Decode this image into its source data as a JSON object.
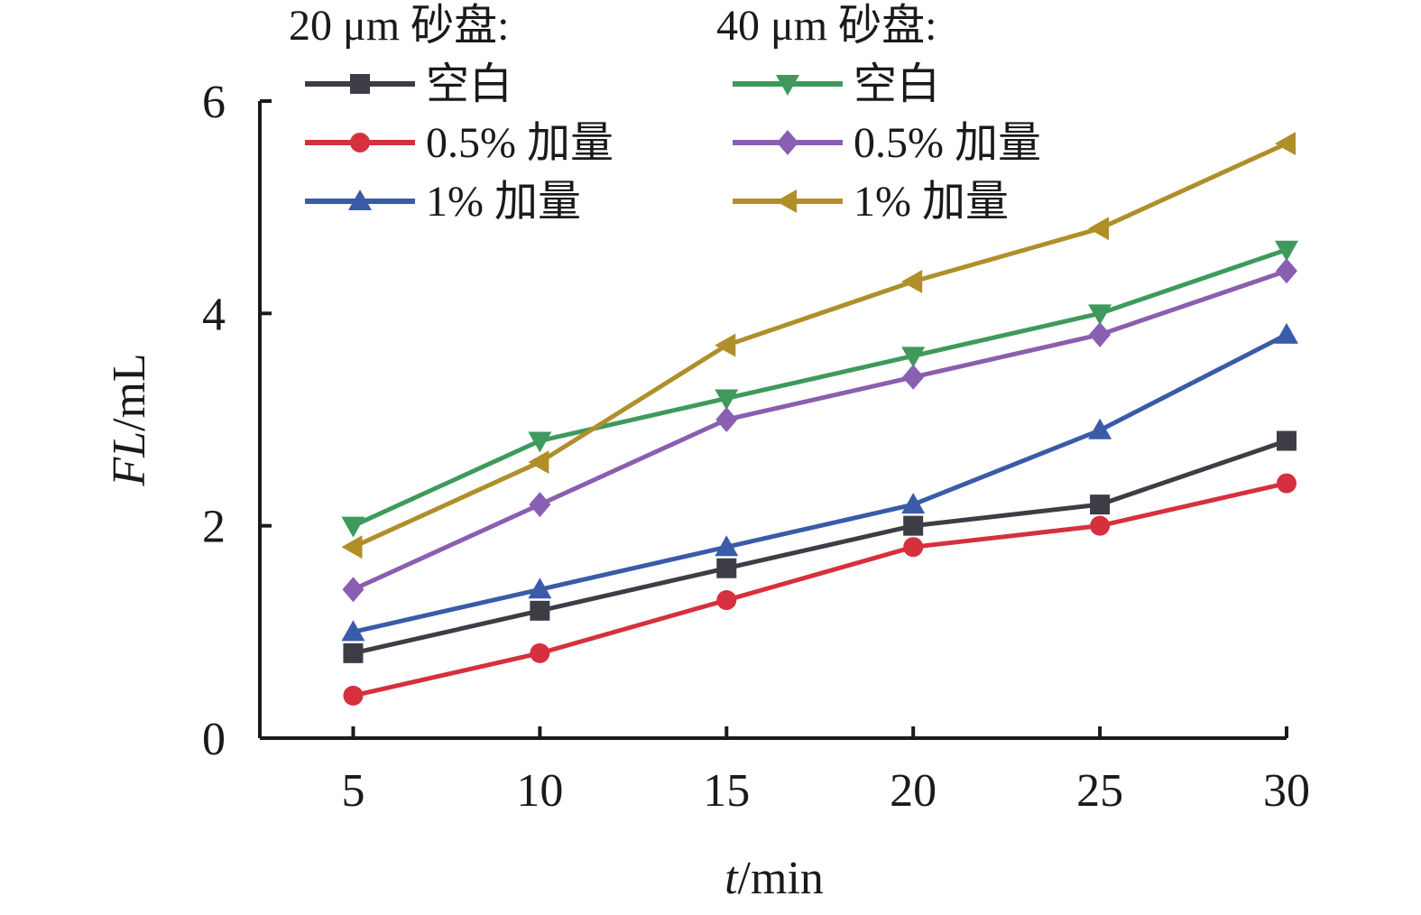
{
  "chart_data": {
    "type": "line",
    "x": [
      5,
      10,
      15,
      20,
      25,
      30
    ],
    "xlabel_italic": "t",
    "xlabel_rest": "/min",
    "ylabel_italic": "FL",
    "ylabel_rest": "/mL",
    "xlim": [
      2.5,
      30
    ],
    "ylim": [
      0,
      6
    ],
    "xticks": [
      5,
      10,
      15,
      20,
      25,
      30
    ],
    "yticks": [
      0,
      2,
      4,
      6
    ],
    "grid": false,
    "legend_placement": "top-left",
    "legend_groups": [
      {
        "title": "20 μm 砂盘:",
        "series_indices": [
          0,
          1,
          2
        ]
      },
      {
        "title": "40 μm 砂盘:",
        "series_indices": [
          3,
          4,
          5
        ]
      }
    ],
    "series": [
      {
        "name": "空白",
        "color": "#3d3d45",
        "marker": "square",
        "values": [
          0.8,
          1.2,
          1.6,
          2.0,
          2.2,
          2.8
        ]
      },
      {
        "name": "0.5% 加量",
        "color": "#d6303e",
        "marker": "circle",
        "values": [
          0.4,
          0.8,
          1.3,
          1.8,
          2.0,
          2.4
        ]
      },
      {
        "name": "1% 加量",
        "color": "#3a5ba8",
        "marker": "triangle-up",
        "values": [
          1.0,
          1.4,
          1.8,
          2.2,
          2.9,
          3.8
        ]
      },
      {
        "name": "空白",
        "color": "#3e9a5c",
        "marker": "triangle-down",
        "values": [
          2.0,
          2.8,
          3.2,
          3.6,
          4.0,
          4.6
        ]
      },
      {
        "name": "0.5% 加量",
        "color": "#8a5eb0",
        "marker": "diamond",
        "values": [
          1.4,
          2.2,
          3.0,
          3.4,
          3.8,
          4.4
        ]
      },
      {
        "name": "1% 加量",
        "color": "#b08f2a",
        "marker": "triangle-left",
        "values": [
          1.8,
          2.6,
          3.7,
          4.3,
          4.8,
          5.6
        ]
      }
    ]
  }
}
